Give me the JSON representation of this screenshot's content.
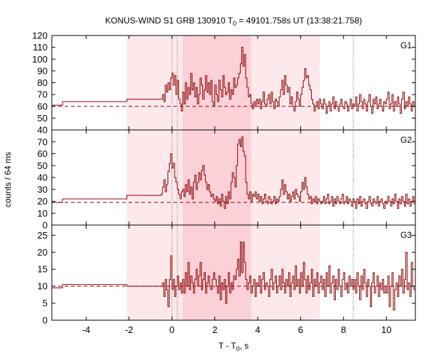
{
  "chart_data": {
    "type": "line",
    "title": "KONUS-WIND S1 GRB 130910 T",
    "title_sub": "0",
    "title_rest": " = 49101.758s UT (13:38:21.758)",
    "xlabel": "T - T",
    "xlabel_sub": "0",
    "xlabel_rest": ", s",
    "ylabel": "counts / 64 ms",
    "xlim": [
      -5.6,
      11.35
    ],
    "x_ticks": [
      -4,
      -2,
      0,
      2,
      4,
      6,
      8,
      10
    ],
    "dotted_lines_x": [
      0.0,
      0.256,
      8.45
    ],
    "shaded_regions": [
      {
        "x0": -2.12,
        "x1": 6.9,
        "level": "light"
      },
      {
        "x0": 0.5,
        "x1": 3.7,
        "level": "dark"
      }
    ],
    "colors": {
      "series": "#8b0000",
      "light": "#fde9eb",
      "dark": "#fbd0d6"
    },
    "panels": [
      {
        "name": "G1",
        "ylim": [
          40,
          120
        ],
        "y_ticks": [
          50,
          60,
          70,
          80,
          90,
          100,
          110,
          120
        ],
        "y_ticks_bottom": [
          40
        ],
        "background": 60,
        "pre_steps": [
          {
            "x0": -5.6,
            "x1": -5.1,
            "v": 61
          },
          {
            "x0": -5.1,
            "x1": -2.1,
            "v": 64
          },
          {
            "x0": -2.1,
            "x1": -0.5,
            "v": 66
          }
        ],
        "segments": [
          {
            "t0": -0.5,
            "t1": 0.0,
            "values": [
              66,
              70,
              64,
              78,
              72,
              80,
              74,
              84
            ]
          },
          {
            "t0": 0.0,
            "t1": 0.5,
            "values": [
              88,
              78,
              86,
              70,
              82,
              66,
              62,
              56
            ]
          },
          {
            "t0": 0.5,
            "t1": 2.0,
            "values": [
              72,
              62,
              80,
              66,
              76,
              70,
              88,
              74,
              80,
              68,
              76,
              62,
              70,
              84,
              78,
              66,
              74,
              86,
              72,
              80,
              70,
              82,
              64,
              60
            ]
          },
          {
            "t0": 2.0,
            "t1": 3.0,
            "values": [
              78,
              70,
              64,
              82,
              74,
              68,
              86,
              76,
              70,
              72,
              80,
              66,
              74,
              70,
              84,
              76
            ]
          },
          {
            "t0": 3.0,
            "t1": 4.0,
            "values": [
              78,
              84,
              88,
              96,
              110,
              94,
              104,
              84,
              76,
              68,
              70,
              62,
              58,
              64,
              60,
              66
            ]
          },
          {
            "t0": 4.0,
            "t1": 5.0,
            "values": [
              62,
              66,
              58,
              64,
              72,
              62,
              60,
              66,
              70,
              62,
              72,
              64,
              58,
              66,
              64,
              60
            ]
          },
          {
            "t0": 5.0,
            "t1": 6.0,
            "values": [
              68,
              74,
              82,
              70,
              86,
              78,
              72,
              76,
              62,
              68,
              60,
              56,
              64,
              72,
              66,
              60
            ]
          },
          {
            "t0": 6.0,
            "t1": 7.0,
            "values": [
              70,
              76,
              82,
              92,
              84,
              86,
              78,
              74,
              66,
              62,
              56,
              60,
              64,
              58,
              66,
              62
            ]
          },
          {
            "t0": 7.0,
            "t1": 8.5,
            "values": [
              58,
              66,
              62,
              54,
              60,
              64,
              56,
              62,
              68,
              58,
              64,
              60,
              56,
              62,
              66,
              60,
              58,
              64,
              62,
              56,
              60,
              66,
              58,
              62
            ]
          },
          {
            "t0": 8.5,
            "t1": 10.0,
            "values": [
              60,
              68,
              56,
              62,
              70,
              64,
              58,
              66,
              62,
              56,
              64,
              70,
              60,
              54,
              66,
              62,
              68,
              58,
              62,
              66,
              60,
              56,
              64,
              62
            ]
          },
          {
            "t0": 10.0,
            "t1": 11.35,
            "values": [
              66,
              72,
              58,
              62,
              70,
              56,
              64,
              60,
              68,
              62,
              54,
              66,
              72,
              58,
              64,
              60,
              68,
              62,
              56,
              64,
              60
            ]
          }
        ]
      },
      {
        "name": "G2",
        "ylim": [
          0,
          80
        ],
        "y_ticks": [
          10,
          20,
          30,
          40,
          50,
          60,
          70
        ],
        "y_ticks_bottom": [
          0
        ],
        "background": 19,
        "pre_steps": [
          {
            "x0": -5.6,
            "x1": -5.1,
            "v": 19
          },
          {
            "x0": -5.1,
            "x1": -2.1,
            "v": 22
          },
          {
            "x0": -2.1,
            "x1": -0.5,
            "v": 25
          }
        ],
        "segments": [
          {
            "t0": -0.5,
            "t1": 0.0,
            "values": [
              26,
              32,
              38,
              28,
              34,
              45,
              52,
              60
            ]
          },
          {
            "t0": 0.0,
            "t1": 0.5,
            "values": [
              48,
              52,
              40,
              36,
              30,
              26,
              22,
              28
            ]
          },
          {
            "t0": 0.5,
            "t1": 2.0,
            "values": [
              30,
              24,
              34,
              28,
              38,
              26,
              32,
              22,
              36,
              42,
              30,
              36,
              44,
              38,
              46,
              50,
              42,
              36,
              30,
              34,
              28,
              24,
              26,
              22
            ]
          },
          {
            "t0": 2.0,
            "t1": 3.0,
            "values": [
              20,
              24,
              18,
              22,
              16,
              26,
              20,
              14,
              24,
              18,
              28,
              22,
              36,
              44,
              40,
              32
            ]
          },
          {
            "t0": 3.0,
            "t1": 4.0,
            "values": [
              50,
              68,
              72,
              66,
              74,
              62,
              58,
              36,
              26,
              22,
              28,
              20,
              26,
              24,
              28,
              22
            ]
          },
          {
            "t0": 4.0,
            "t1": 5.0,
            "values": [
              26,
              20,
              24,
              18,
              22,
              26,
              20,
              18,
              24,
              22,
              18,
              20,
              24,
              18,
              22,
              20
            ]
          },
          {
            "t0": 5.0,
            "t1": 6.0,
            "values": [
              24,
              30,
              38,
              26,
              34,
              28,
              22,
              26,
              20,
              24,
              28,
              22,
              30,
              26,
              24,
              20
            ]
          },
          {
            "t0": 6.0,
            "t1": 7.0,
            "values": [
              28,
              36,
              30,
              40,
              32,
              26,
              22,
              24,
              18,
              22,
              20,
              24,
              18,
              22,
              20,
              18
            ]
          },
          {
            "t0": 7.0,
            "t1": 8.5,
            "values": [
              20,
              24,
              18,
              22,
              26,
              18,
              20,
              24,
              16,
              22,
              18,
              24,
              20,
              18,
              22,
              26,
              18,
              20,
              24,
              18,
              22,
              20,
              16,
              22
            ]
          },
          {
            "t0": 8.5,
            "t1": 10.0,
            "values": [
              20,
              14,
              22,
              18,
              24,
              16,
              20,
              22,
              18,
              14,
              20,
              24,
              18,
              16,
              22,
              20,
              18,
              24,
              16,
              20,
              22,
              18,
              14,
              20
            ]
          },
          {
            "t0": 10.0,
            "t1": 11.35,
            "values": [
              18,
              24,
              20,
              16,
              22,
              18,
              26,
              20,
              14,
              22,
              18,
              24,
              20,
              16,
              26,
              18,
              22,
              16,
              20,
              24,
              18
            ]
          }
        ]
      },
      {
        "name": "G3",
        "ylim": [
          0,
          28
        ],
        "y_ticks": [
          5,
          10,
          15,
          20,
          25
        ],
        "y_ticks_bottom": [
          0
        ],
        "background": 10,
        "pre_steps": [
          {
            "x0": -5.6,
            "x1": -5.1,
            "v": 9.5
          },
          {
            "x0": -5.1,
            "x1": -2.1,
            "v": 10.5
          },
          {
            "x0": -2.1,
            "x1": -0.5,
            "v": 10
          }
        ],
        "segments": [
          {
            "t0": -0.5,
            "t1": 0.0,
            "values": [
              10,
              11,
              7,
              12,
              9,
              4,
              12,
              19
            ]
          },
          {
            "t0": 0.0,
            "t1": 0.5,
            "values": [
              9,
              12,
              7,
              10,
              13,
              9,
              11,
              8
            ]
          },
          {
            "t0": 0.5,
            "t1": 2.0,
            "values": [
              12,
              8,
              14,
              10,
              17,
              9,
              13,
              11,
              8,
              12,
              15,
              10,
              13,
              17,
              9,
              12,
              14,
              8,
              11,
              13,
              10,
              9,
              12,
              14
            ]
          },
          {
            "t0": 2.0,
            "t1": 3.0,
            "values": [
              12,
              10,
              8,
              13,
              6,
              11,
              9,
              12,
              5,
              10,
              14,
              8,
              11,
              9,
              13,
              12
            ]
          },
          {
            "t0": 3.0,
            "t1": 4.0,
            "values": [
              15,
              18,
              13,
              23,
              14,
              23,
              17,
              12,
              9,
              11,
              13,
              8,
              10,
              12,
              7,
              11
            ]
          },
          {
            "t0": 4.0,
            "t1": 5.0,
            "values": [
              10,
              13,
              8,
              12,
              14,
              9,
              11,
              10,
              7,
              12,
              15,
              9,
              11,
              13,
              8,
              10
            ]
          },
          {
            "t0": 5.0,
            "t1": 6.0,
            "values": [
              13,
              9,
              15,
              11,
              8,
              12,
              10,
              14,
              7,
              11,
              13,
              9,
              16,
              10,
              12,
              8
            ]
          },
          {
            "t0": 6.0,
            "t1": 7.0,
            "values": [
              14,
              10,
              17,
              12,
              8,
              13,
              9,
              11,
              15,
              7,
              12,
              10,
              14,
              8,
              11,
              13
            ]
          },
          {
            "t0": 7.0,
            "t1": 8.5,
            "values": [
              9,
              12,
              7,
              14,
              10,
              16,
              8,
              11,
              13,
              6,
              12,
              9,
              15,
              10,
              7,
              12,
              14,
              9,
              11,
              8,
              13,
              10,
              12,
              9
            ]
          },
          {
            "t0": 8.5,
            "t1": 10.0,
            "values": [
              12,
              8,
              14,
              10,
              6,
              13,
              9,
              15,
              11,
              7,
              12,
              10,
              4,
              11,
              14,
              8,
              10,
              13,
              7,
              11,
              9,
              12,
              8,
              10
            ]
          },
          {
            "t0": 10.0,
            "t1": 11.35,
            "values": [
              8,
              13,
              4,
              10,
              14,
              3,
              9,
              11,
              7,
              13,
              10,
              15,
              8,
              12,
              20,
              9,
              11,
              7,
              17,
              10,
              9
            ]
          }
        ]
      }
    ]
  }
}
